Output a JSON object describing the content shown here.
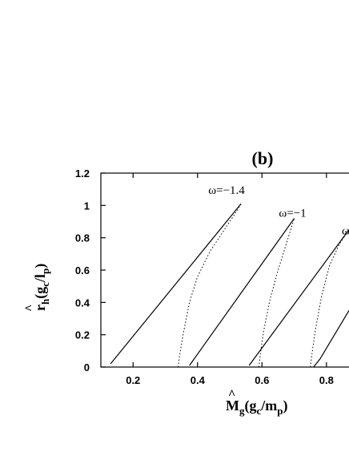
{
  "chart_data": {
    "type": "line",
    "title": "(b)",
    "xlabel_parts": {
      "hat": "^",
      "main": "M",
      "sub": "g",
      "rest": "(g",
      "sub2": "c",
      "rest2": "/m",
      "sub3": "p",
      "close": ")"
    },
    "ylabel_parts": {
      "hat": "^",
      "main": "r",
      "sub": "h",
      "rest": "(g",
      "sub2": "c",
      "rest2": "/l",
      "sub3": "p",
      "close": ")"
    },
    "xlim": [
      0.1,
      0.87
    ],
    "ylim": [
      0,
      1.2
    ],
    "x_ticks": [
      0.2,
      0.4,
      0.6,
      0.8
    ],
    "x_tick_labels": [
      "0.2",
      "0.4",
      "0.6",
      "0.8"
    ],
    "y_ticks": [
      0,
      0.2,
      0.4,
      0.6,
      0.8,
      1.0,
      1.2
    ],
    "y_tick_labels": [
      "0",
      "0.2",
      "0.4",
      "0.6",
      "0.8",
      "1",
      "1.2"
    ],
    "annotations": [
      {
        "text": "ω=−1.4",
        "x": 0.49,
        "y": 1.07
      },
      {
        "text": "ω=−1",
        "x": 0.695,
        "y": 0.93
      },
      {
        "text": "ω",
        "x": 0.86,
        "y": 0.82
      }
    ],
    "series": [
      {
        "style": "solid",
        "points": [
          [
            0.13,
            0.02
          ],
          [
            0.535,
            1.01
          ]
        ]
      },
      {
        "style": "dotted",
        "points": [
          [
            0.34,
            0.0
          ],
          [
            0.345,
            0.08
          ],
          [
            0.355,
            0.2
          ],
          [
            0.375,
            0.4
          ],
          [
            0.4,
            0.56
          ],
          [
            0.44,
            0.72
          ],
          [
            0.48,
            0.84
          ],
          [
            0.52,
            0.96
          ],
          [
            0.535,
            1.01
          ]
        ]
      },
      {
        "style": "solid",
        "points": [
          [
            0.375,
            0.01
          ],
          [
            0.7,
            0.92
          ]
        ]
      },
      {
        "style": "dotted",
        "points": [
          [
            0.59,
            0.0
          ],
          [
            0.595,
            0.08
          ],
          [
            0.605,
            0.22
          ],
          [
            0.625,
            0.42
          ],
          [
            0.65,
            0.6
          ],
          [
            0.675,
            0.76
          ],
          [
            0.7,
            0.92
          ]
        ]
      },
      {
        "style": "solid",
        "points": [
          [
            0.56,
            0.01
          ],
          [
            0.87,
            0.85
          ]
        ]
      },
      {
        "style": "dotted",
        "points": [
          [
            0.75,
            0.0
          ],
          [
            0.755,
            0.08
          ],
          [
            0.765,
            0.22
          ],
          [
            0.785,
            0.44
          ],
          [
            0.81,
            0.63
          ],
          [
            0.84,
            0.76
          ],
          [
            0.87,
            0.85
          ]
        ]
      },
      {
        "style": "solid",
        "points": [
          [
            0.76,
            0.0
          ],
          [
            0.78,
            0.05
          ],
          [
            0.87,
            0.35
          ]
        ]
      }
    ]
  }
}
